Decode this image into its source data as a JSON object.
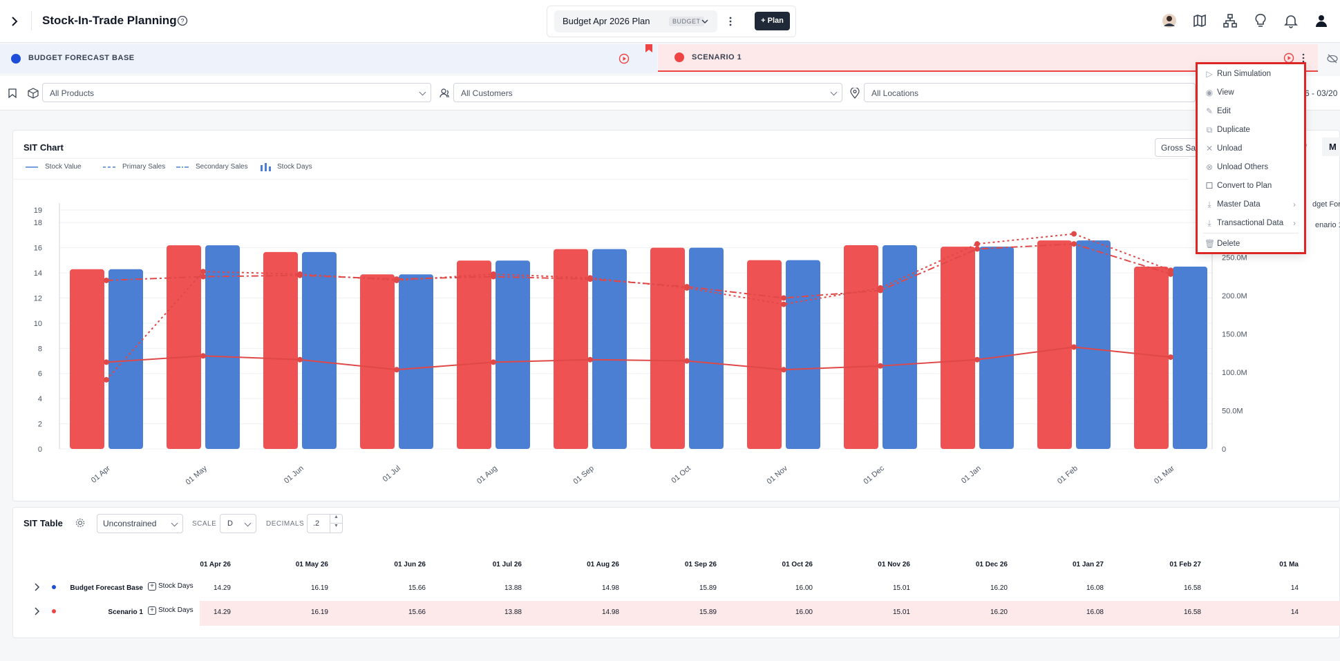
{
  "header": {
    "title": "Stock-In-Trade Planning",
    "plan_name": "Budget Apr 2026 Plan",
    "plan_badge": "BUDGET",
    "add_plan_label": "+ Plan"
  },
  "scenarios": {
    "base_label": "BUDGET FORECAST BASE",
    "base_color": "#1d4ed8",
    "scenario_label": "SCENARIO 1",
    "scenario_color": "#ef4444"
  },
  "filters": {
    "products": "All Products",
    "customers": "All Customers",
    "locations": "All Locations",
    "date_range": "6 - 03/20"
  },
  "chart_card": {
    "title": "SIT Chart",
    "measure_select": "Gross Sal",
    "period_partial": "/",
    "period_selected": "M",
    "legend_right_1": "dget Fore",
    "legend_right_2": "enario 1"
  },
  "chart_data": {
    "type": "bar",
    "categories": [
      "01 Apr",
      "01 May",
      "01 Jun",
      "01 Jul",
      "01 Aug",
      "01 Sep",
      "01 Oct",
      "01 Nov",
      "01 Dec",
      "01 Jan",
      "01 Feb",
      "01 Mar"
    ],
    "legend": [
      "Stock Value",
      "Primary Sales",
      "Secondary Sales",
      "Stock Days"
    ],
    "ylim_left": [
      0,
      19
    ],
    "yticks_left": [
      "0",
      "2",
      "4",
      "6",
      "8",
      "10",
      "12",
      "14",
      "16",
      "18",
      "19"
    ],
    "yticks_right": [
      "0",
      "50.0M",
      "100.0M",
      "150.0M",
      "200.0M",
      "250.0M"
    ],
    "series": [
      {
        "name": "Budget Forecast Base",
        "color": "#4a7fd4",
        "values": [
          14.29,
          16.19,
          15.66,
          13.88,
          14.98,
          15.89,
          16.0,
          15.01,
          16.2,
          16.08,
          16.58,
          14.5
        ]
      },
      {
        "name": "Scenario 1",
        "color": "#ef5252",
        "values": [
          14.29,
          16.19,
          15.66,
          13.88,
          14.98,
          15.89,
          16.0,
          15.01,
          16.2,
          16.08,
          16.58,
          14.5
        ]
      }
    ],
    "lines": {
      "stock_value": [
        6.9,
        7.4,
        7.1,
        6.3,
        6.9,
        7.1,
        7.0,
        6.3,
        6.6,
        7.1,
        8.1,
        7.3
      ],
      "primary_sales": [
        5.5,
        14.1,
        13.9,
        13.4,
        13.9,
        13.6,
        12.8,
        11.5,
        12.8,
        16.3,
        17.1,
        14.2
      ],
      "secondary_sales": [
        13.4,
        13.7,
        13.8,
        13.5,
        13.7,
        13.5,
        12.9,
        12.0,
        12.6,
        15.9,
        16.3,
        13.9
      ]
    }
  },
  "table": {
    "title": "SIT Table",
    "mode": "Unconstrained",
    "scale_label": "SCALE",
    "scale_value": "D",
    "decimals_label": "DECIMALS",
    "decimals_value": ".2",
    "columns": [
      "01 Apr 26",
      "01 May 26",
      "01 Jun 26",
      "01 Jul 26",
      "01 Aug 26",
      "01 Sep 26",
      "01 Oct 26",
      "01 Nov 26",
      "01 Dec 26",
      "01 Jan 27",
      "01 Feb 27",
      "01 Ma"
    ],
    "rows": [
      {
        "label": "Budget Forecast Base",
        "measure": "Stock Days",
        "values": [
          "14.29",
          "16.19",
          "15.66",
          "13.88",
          "14.98",
          "15.89",
          "16.00",
          "15.01",
          "16.20",
          "16.08",
          "16.58",
          "14"
        ]
      },
      {
        "label": "Scenario 1",
        "measure": "Stock Days",
        "values": [
          "14.29",
          "16.19",
          "15.66",
          "13.88",
          "14.98",
          "15.89",
          "16.00",
          "15.01",
          "16.20",
          "16.08",
          "16.58",
          "14"
        ]
      }
    ]
  },
  "context_menu": {
    "items": [
      {
        "label": "Run Simulation",
        "icon": "play-icon"
      },
      {
        "label": "View",
        "icon": "eye-icon"
      },
      {
        "label": "Edit",
        "icon": "pencil-icon"
      },
      {
        "label": "Duplicate",
        "icon": "copy-icon"
      },
      {
        "label": "Unload",
        "icon": "x-icon"
      },
      {
        "label": "Unload Others",
        "icon": "x-circle-icon"
      },
      {
        "label": "Convert to Plan",
        "icon": "checkbox-icon"
      },
      {
        "label": "Master Data",
        "icon": "download-icon",
        "submenu": true
      },
      {
        "label": "Transactional Data",
        "icon": "download-icon",
        "submenu": true
      },
      {
        "label": "Delete",
        "icon": "trash-icon"
      }
    ]
  }
}
